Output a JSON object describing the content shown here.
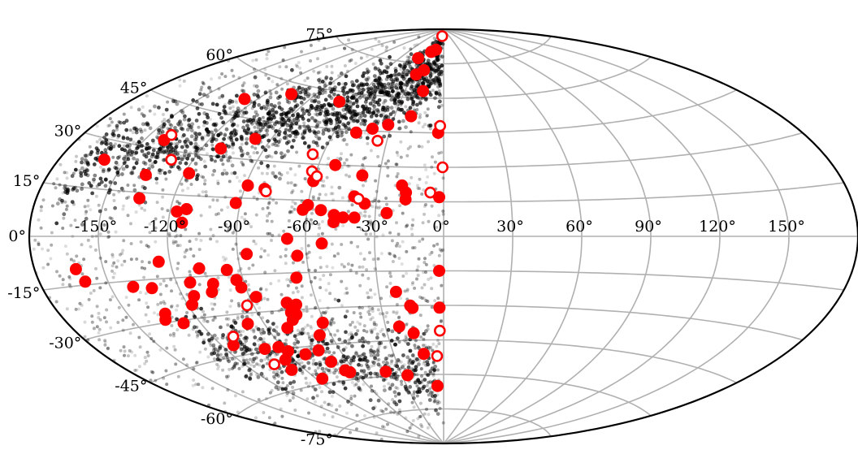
{
  "chart_data": {
    "type": "scatter",
    "projection": "aitoff",
    "grid": true,
    "lon_ticks": [
      -150,
      -120,
      -90,
      -60,
      -30,
      0,
      30,
      60,
      90,
      120,
      150
    ],
    "lat_ticks": [
      75,
      60,
      45,
      30,
      15,
      0,
      -15,
      -30,
      -45,
      -60,
      -75
    ],
    "lon_labels": [
      "-150°",
      "-120°",
      "-90°",
      "-60°",
      "-30°",
      "0°",
      "30°",
      "60°",
      "90°",
      "120°",
      "150°"
    ],
    "lat_labels": [
      "75°",
      "60°",
      "45°",
      "30°",
      "15°",
      "0°",
      "-15°",
      "-30°",
      "-45°",
      "-60°",
      "-75°"
    ],
    "colors": {
      "filled": "#ff0000",
      "open": "#ff0000",
      "background": "#000000",
      "grid": "#b0b0b0"
    },
    "series": [
      {
        "marker": "filled-circle",
        "points": [
          [
            -36,
            77
          ],
          [
            -22,
            80
          ],
          [
            -15,
            81
          ],
          [
            -27,
            70
          ],
          [
            -21,
            72
          ],
          [
            -105,
            56
          ],
          [
            -70,
            56
          ],
          [
            -20,
            52
          ],
          [
            -3,
            45
          ],
          [
            -48,
            44
          ],
          [
            -40,
            46
          ],
          [
            -32,
            48
          ],
          [
            -127,
            51
          ],
          [
            -16,
            63
          ],
          [
            -98,
            38
          ],
          [
            -141,
            33
          ],
          [
            -111,
            33
          ],
          [
            -52,
            30
          ],
          [
            -160,
            24
          ],
          [
            -137,
            21
          ],
          [
            -118,
            23
          ],
          [
            -89,
            20
          ],
          [
            -81,
            19
          ],
          [
            -40,
            17
          ],
          [
            -35,
            14
          ],
          [
            -19,
            22
          ],
          [
            -17,
            19
          ],
          [
            -17,
            16
          ],
          [
            -2,
            17
          ],
          [
            -38,
            26
          ],
          [
            -60,
            23
          ],
          [
            -60,
            13
          ],
          [
            -54,
            11
          ],
          [
            -62,
            11
          ],
          [
            -48,
            9
          ],
          [
            -44,
            8
          ],
          [
            -39,
            8
          ],
          [
            -25,
            10
          ],
          [
            -48,
            6
          ],
          [
            -135,
            13
          ],
          [
            -117,
            9
          ],
          [
            -113,
            10
          ],
          [
            -114,
            5
          ],
          [
            -92,
            13
          ],
          [
            -68,
            -1
          ],
          [
            -53,
            -3
          ],
          [
            -86,
            -7
          ],
          [
            -64,
            -8
          ],
          [
            -162,
            -10
          ],
          [
            -160,
            -14
          ],
          [
            -125,
            -9
          ],
          [
            -108,
            -12
          ],
          [
            -96,
            -13
          ],
          [
            -93,
            -17
          ],
          [
            -66,
            -17
          ],
          [
            -2,
            -15
          ],
          [
            -132,
            -18
          ],
          [
            -140,
            -17
          ],
          [
            -114,
            -17
          ],
          [
            -104,
            -18
          ],
          [
            -106,
            -21
          ],
          [
            -92,
            -20
          ],
          [
            -115,
            -22
          ],
          [
            -118,
            -25
          ],
          [
            -87,
            -24
          ],
          [
            -74,
            -27
          ],
          [
            -70,
            -28
          ],
          [
            -22,
            -24
          ],
          [
            -16,
            -30
          ],
          [
            -15,
            -31
          ],
          [
            -2,
            -31
          ],
          [
            -133,
            -27
          ],
          [
            -135,
            -29
          ],
          [
            -128,
            -31
          ],
          [
            -98,
            -34
          ],
          [
            -80,
            -37
          ],
          [
            -74,
            -31
          ],
          [
            -72,
            -32
          ],
          [
            -75,
            -34
          ],
          [
            -61,
            -36
          ],
          [
            -23,
            -39
          ],
          [
            -114,
            -41
          ],
          [
            -100,
            -44
          ],
          [
            -92,
            -44
          ],
          [
            -89,
            -46
          ],
          [
            -81,
            -48
          ],
          [
            -72,
            -47
          ],
          [
            -66,
            -41
          ],
          [
            -16,
            -42
          ],
          [
            -95,
            -49
          ],
          [
            -98,
            -53
          ],
          [
            -70,
            -52
          ],
          [
            -66,
            -56
          ],
          [
            -64,
            -57
          ],
          [
            -86,
            -58
          ],
          [
            -40,
            -58
          ],
          [
            -26,
            -60
          ],
          [
            -12,
            -51
          ],
          [
            -5,
            -65
          ]
        ]
      },
      {
        "marker": "open-circle",
        "points": [
          [
            -8,
            87
          ],
          [
            -2,
            48
          ],
          [
            -0.5,
            30
          ],
          [
            -6,
            19
          ],
          [
            -35,
            41
          ],
          [
            -65,
            34
          ],
          [
            -62,
            27
          ],
          [
            -59,
            25
          ],
          [
            -38,
            16
          ],
          [
            -80,
            18
          ],
          [
            -140,
            35
          ],
          [
            -130,
            27
          ],
          [
            -93,
            -27
          ],
          [
            -110,
            -38
          ],
          [
            -104,
            -50
          ],
          [
            -2,
            -41
          ],
          [
            -4,
            -52
          ]
        ]
      }
    ]
  }
}
